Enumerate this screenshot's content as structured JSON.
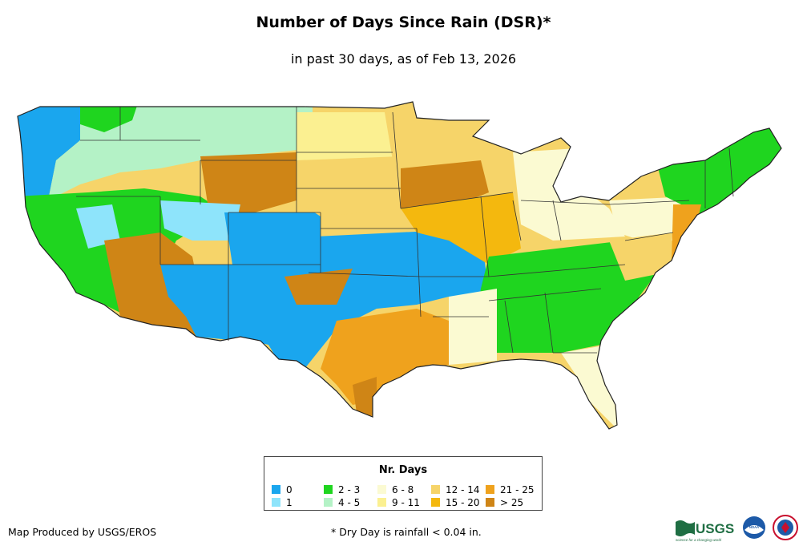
{
  "header": {
    "title": "Number of Days Since Rain (DSR)*",
    "subtitle": "in past 30 days, as of Feb 13, 2026"
  },
  "legend": {
    "title": "Nr. Days",
    "items": [
      {
        "label": "0",
        "color": "#1aa6ee"
      },
      {
        "label": "1",
        "color": "#8ee4fb"
      },
      {
        "label": "2 - 3",
        "color": "#1fd51f"
      },
      {
        "label": "4 - 5",
        "color": "#b4f2c6"
      },
      {
        "label": "6 - 8",
        "color": "#fbfad2"
      },
      {
        "label": "9 - 11",
        "color": "#fbf091"
      },
      {
        "label": "12 - 14",
        "color": "#f6d469"
      },
      {
        "label": "15 - 20",
        "color": "#f4b80e"
      },
      {
        "label": "21 - 25",
        "color": "#efa21d"
      },
      {
        "label": "> 25",
        "color": "#cf8516"
      }
    ]
  },
  "footer": {
    "producer": "Map Produced by USGS/EROS",
    "note": "* Dry Day is rainfall < 0.04 in."
  },
  "logos": {
    "usgs": "USGS",
    "usgs_tagline": "science for a changing world",
    "noaa": "NOAA"
  }
}
